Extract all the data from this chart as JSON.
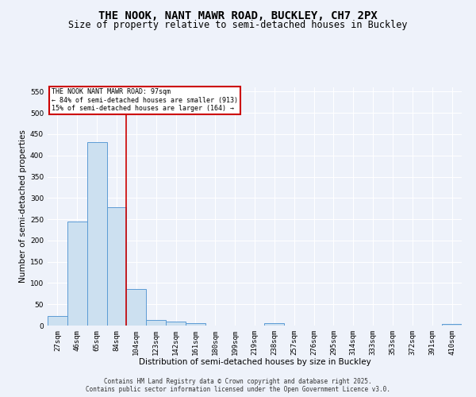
{
  "title1": "THE NOOK, NANT MAWR ROAD, BUCKLEY, CH7 2PX",
  "title2": "Size of property relative to semi-detached houses in Buckley",
  "xlabel": "Distribution of semi-detached houses by size in Buckley",
  "ylabel": "Number of semi-detached properties",
  "categories": [
    "27sqm",
    "46sqm",
    "65sqm",
    "84sqm",
    "104sqm",
    "123sqm",
    "142sqm",
    "161sqm",
    "180sqm",
    "199sqm",
    "219sqm",
    "238sqm",
    "257sqm",
    "276sqm",
    "295sqm",
    "314sqm",
    "333sqm",
    "353sqm",
    "372sqm",
    "391sqm",
    "410sqm"
  ],
  "values": [
    23,
    244,
    432,
    279,
    85,
    14,
    10,
    5,
    0,
    0,
    0,
    5,
    0,
    0,
    0,
    0,
    0,
    0,
    0,
    0,
    4
  ],
  "bar_color": "#cce0f0",
  "bar_edge_color": "#5b9bd5",
  "property_line_color": "#cc0000",
  "annotation_text": "THE NOOK NANT MAWR ROAD: 97sqm\n← 84% of semi-detached houses are smaller (913)\n15% of semi-detached houses are larger (164) →",
  "annotation_box_color": "#ffffff",
  "annotation_box_edge": "#cc0000",
  "ylim": [
    0,
    560
  ],
  "yticks": [
    0,
    50,
    100,
    150,
    200,
    250,
    300,
    350,
    400,
    450,
    500,
    550
  ],
  "footer1": "Contains HM Land Registry data © Crown copyright and database right 2025.",
  "footer2": "Contains public sector information licensed under the Open Government Licence v3.0.",
  "bg_color": "#eef2fa",
  "plot_bg_color": "#eef2fa",
  "grid_color": "#ffffff",
  "title_fontsize": 10,
  "subtitle_fontsize": 8.5,
  "axis_label_fontsize": 7.5,
  "tick_fontsize": 6.5,
  "footer_fontsize": 5.5
}
